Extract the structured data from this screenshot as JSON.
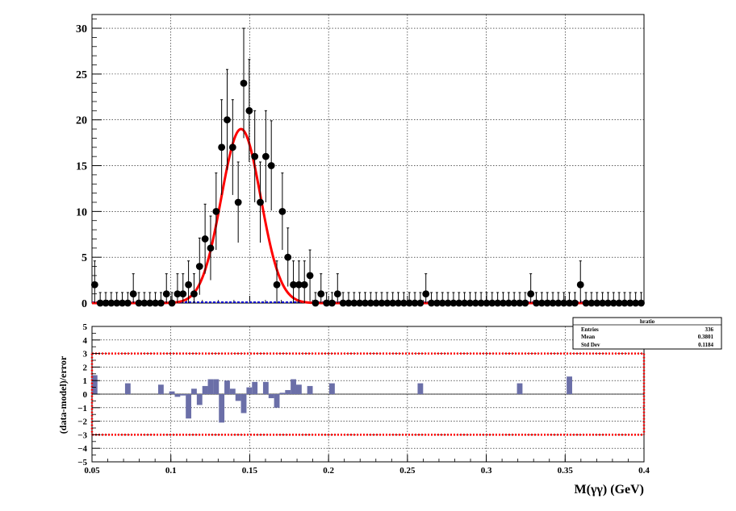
{
  "chart_data": [
    {
      "type": "scatter",
      "title": "",
      "xlabel": "",
      "ylabel": "",
      "xlim": [
        0.05,
        0.4
      ],
      "ylim": [
        0,
        31.5
      ],
      "grid": true,
      "x_ticks": [
        "0.05",
        "0.1",
        "0.15",
        "0.2",
        "0.25",
        "0.3",
        "0.35",
        "0.4"
      ],
      "y_ticks": [
        "0",
        "5",
        "10",
        "15",
        "20",
        "25",
        "30"
      ],
      "x": [
        0.0517,
        0.0552,
        0.0587,
        0.0622,
        0.0657,
        0.0692,
        0.0727,
        0.0762,
        0.0797,
        0.0832,
        0.0867,
        0.0902,
        0.0937,
        0.0972,
        0.1007,
        0.1042,
        0.1077,
        0.1112,
        0.1147,
        0.1182,
        0.1217,
        0.1252,
        0.1287,
        0.1322,
        0.1357,
        0.1392,
        0.1427,
        0.1462,
        0.1497,
        0.1532,
        0.1567,
        0.1602,
        0.1637,
        0.1672,
        0.1707,
        0.1742,
        0.1777,
        0.1812,
        0.1847,
        0.1882,
        0.1917,
        0.1952,
        0.1987,
        0.2022,
        0.2057,
        0.2092,
        0.2127,
        0.2162,
        0.2197,
        0.2232,
        0.2267,
        0.2302,
        0.2337,
        0.2372,
        0.2407,
        0.2442,
        0.2477,
        0.2512,
        0.2547,
        0.2582,
        0.2617,
        0.2652,
        0.2687,
        0.2722,
        0.2757,
        0.2792,
        0.2827,
        0.2862,
        0.2897,
        0.2932,
        0.2967,
        0.3002,
        0.3037,
        0.3072,
        0.3107,
        0.3142,
        0.3177,
        0.3212,
        0.3247,
        0.3282,
        0.3317,
        0.3352,
        0.3387,
        0.3422,
        0.3457,
        0.3492,
        0.3527,
        0.3562,
        0.3597,
        0.3632,
        0.3667,
        0.3702,
        0.3737,
        0.3772,
        0.3807,
        0.3842,
        0.3877,
        0.3912,
        0.3947,
        0.3982
      ],
      "series": [
        {
          "values": [
            2,
            0,
            0,
            0,
            0,
            0,
            0,
            1,
            0,
            0,
            0,
            0,
            0,
            1,
            0,
            1,
            1,
            2,
            1,
            4,
            7,
            6,
            10,
            17,
            20,
            17,
            11,
            24,
            21,
            16,
            11,
            16,
            15,
            2,
            10,
            5,
            2,
            2,
            2,
            3,
            0,
            1,
            0,
            0,
            1,
            0,
            0,
            0,
            0,
            0,
            0,
            0,
            0,
            0,
            0,
            0,
            0,
            0,
            0,
            0,
            1,
            0,
            0,
            0,
            0,
            0,
            0,
            0,
            0,
            0,
            0,
            0,
            0,
            0,
            0,
            0,
            0,
            0,
            0,
            1,
            0,
            0,
            0,
            0,
            0,
            0,
            0,
            0,
            2,
            0,
            0,
            0,
            0,
            0,
            0,
            0,
            0,
            0,
            0,
            0
          ],
          "errors": [
            2.6,
            1.15,
            1.15,
            1.15,
            1.15,
            1.15,
            1.15,
            2.2,
            1.15,
            1.15,
            1.15,
            1.15,
            1.15,
            2.2,
            1.15,
            2.2,
            2.2,
            2.6,
            2.2,
            3.1,
            3.8,
            3.5,
            4.2,
            5.2,
            5.5,
            5.2,
            4.4,
            6.0,
            5.6,
            5.0,
            4.4,
            5.0,
            4.9,
            2.6,
            4.2,
            3.2,
            2.6,
            2.6,
            2.6,
            2.8,
            1.15,
            2.2,
            1.15,
            1.15,
            2.2,
            1.15,
            1.15,
            1.15,
            1.15,
            1.15,
            1.15,
            1.15,
            1.15,
            1.15,
            1.15,
            1.15,
            1.15,
            1.15,
            1.15,
            1.15,
            2.2,
            1.15,
            1.15,
            1.15,
            1.15,
            1.15,
            1.15,
            1.15,
            1.15,
            1.15,
            1.15,
            1.15,
            1.15,
            1.15,
            1.15,
            1.15,
            1.15,
            1.15,
            1.15,
            2.2,
            1.15,
            1.15,
            1.15,
            1.15,
            1.15,
            1.15,
            1.15,
            1.15,
            2.6,
            1.15,
            1.15,
            1.15,
            1.15,
            1.15,
            1.15,
            1.15,
            1.15,
            1.15,
            1.15,
            1.15
          ]
        }
      ],
      "fit": {
        "type": "gaussian",
        "amplitude": 19,
        "mean": 0.1445,
        "sigma": 0.0125,
        "color": "#ff0000"
      },
      "background_color": "#0000cc",
      "marker_color": "#000000"
    },
    {
      "type": "bar",
      "title": "",
      "xlabel": "M(γγ) (GeV)",
      "ylabel": "(data-model)/error",
      "xlim": [
        0.05,
        0.4
      ],
      "ylim": [
        -5,
        5
      ],
      "grid": true,
      "x_ticks": [
        "0.05",
        "0.1",
        "0.15",
        "0.2",
        "0.25",
        "0.3",
        "0.35",
        "0.4"
      ],
      "y_ticks": [
        "5",
        "4",
        "3",
        "2",
        "1",
        "0",
        "−1",
        "−2",
        "−3",
        "−4",
        "−5"
      ],
      "x": [
        0.0517,
        0.0727,
        0.0937,
        0.1007,
        0.1042,
        0.1077,
        0.1112,
        0.1147,
        0.1182,
        0.1217,
        0.1252,
        0.1287,
        0.1322,
        0.1357,
        0.1392,
        0.1427,
        0.1462,
        0.1497,
        0.1532,
        0.1567,
        0.1602,
        0.1637,
        0.1672,
        0.1707,
        0.1742,
        0.1777,
        0.1812,
        0.1847,
        0.1882,
        0.1917,
        0.2022,
        0.2582,
        0.3212,
        0.3527
      ],
      "values": [
        1.4,
        0.8,
        0.7,
        0.2,
        -0.2,
        -0.1,
        -1.8,
        0.4,
        -0.8,
        0.6,
        1.1,
        1.1,
        -2.1,
        1.0,
        0.4,
        -0.5,
        -1.4,
        0.5,
        0.9,
        0.0,
        0.9,
        -0.3,
        -1.0,
        0.1,
        0.3,
        1.1,
        0.7,
        0.0,
        0.6,
        0.0,
        0.8,
        0.8,
        0.8,
        1.3
      ],
      "reference_lines": [
        3,
        -3
      ],
      "reference_color": "#ff0000",
      "bar_color": "#6b6fa8",
      "stats": {
        "name": "hratio",
        "rows": [
          {
            "label": "Entries",
            "value": "336"
          },
          {
            "label": "Mean",
            "value": "0.3801"
          },
          {
            "label": "Std Dev",
            "value": "0.1184"
          }
        ]
      }
    }
  ]
}
